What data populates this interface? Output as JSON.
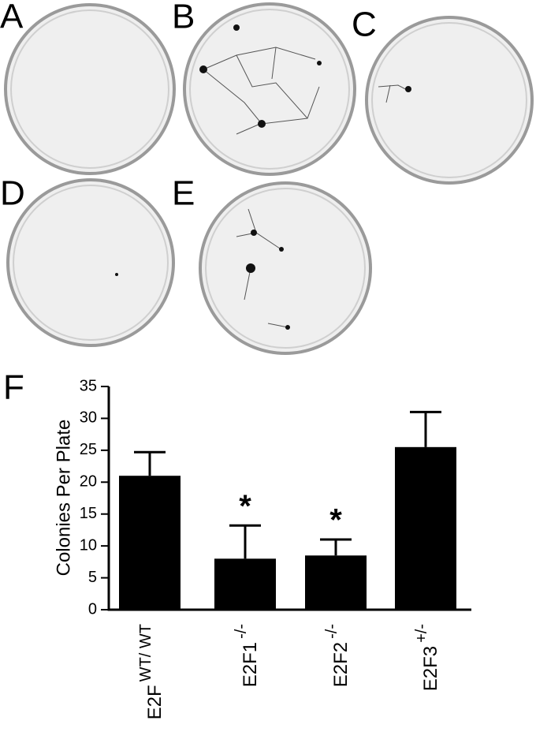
{
  "panel_labels": [
    "A",
    "B",
    "C",
    "D",
    "E",
    "F"
  ],
  "chart_data": {
    "type": "bar",
    "y_label": "Colonies Per Plate",
    "categories": [
      "E2F",
      "E2F1",
      "E2F2",
      "E2F3"
    ],
    "category_superscripts": [
      "WT/ WT",
      "-/-",
      "-/-",
      "+/-"
    ],
    "values": [
      21,
      8,
      8.5,
      25.5
    ],
    "errors": [
      3.7,
      5.2,
      2.5,
      5.5
    ],
    "significance": [
      null,
      "*",
      "*",
      null
    ],
    "color": "#000000",
    "ylim": [
      0,
      35
    ],
    "yticks": [
      0,
      5,
      10,
      15,
      20,
      25,
      30,
      35
    ],
    "grid": false
  }
}
